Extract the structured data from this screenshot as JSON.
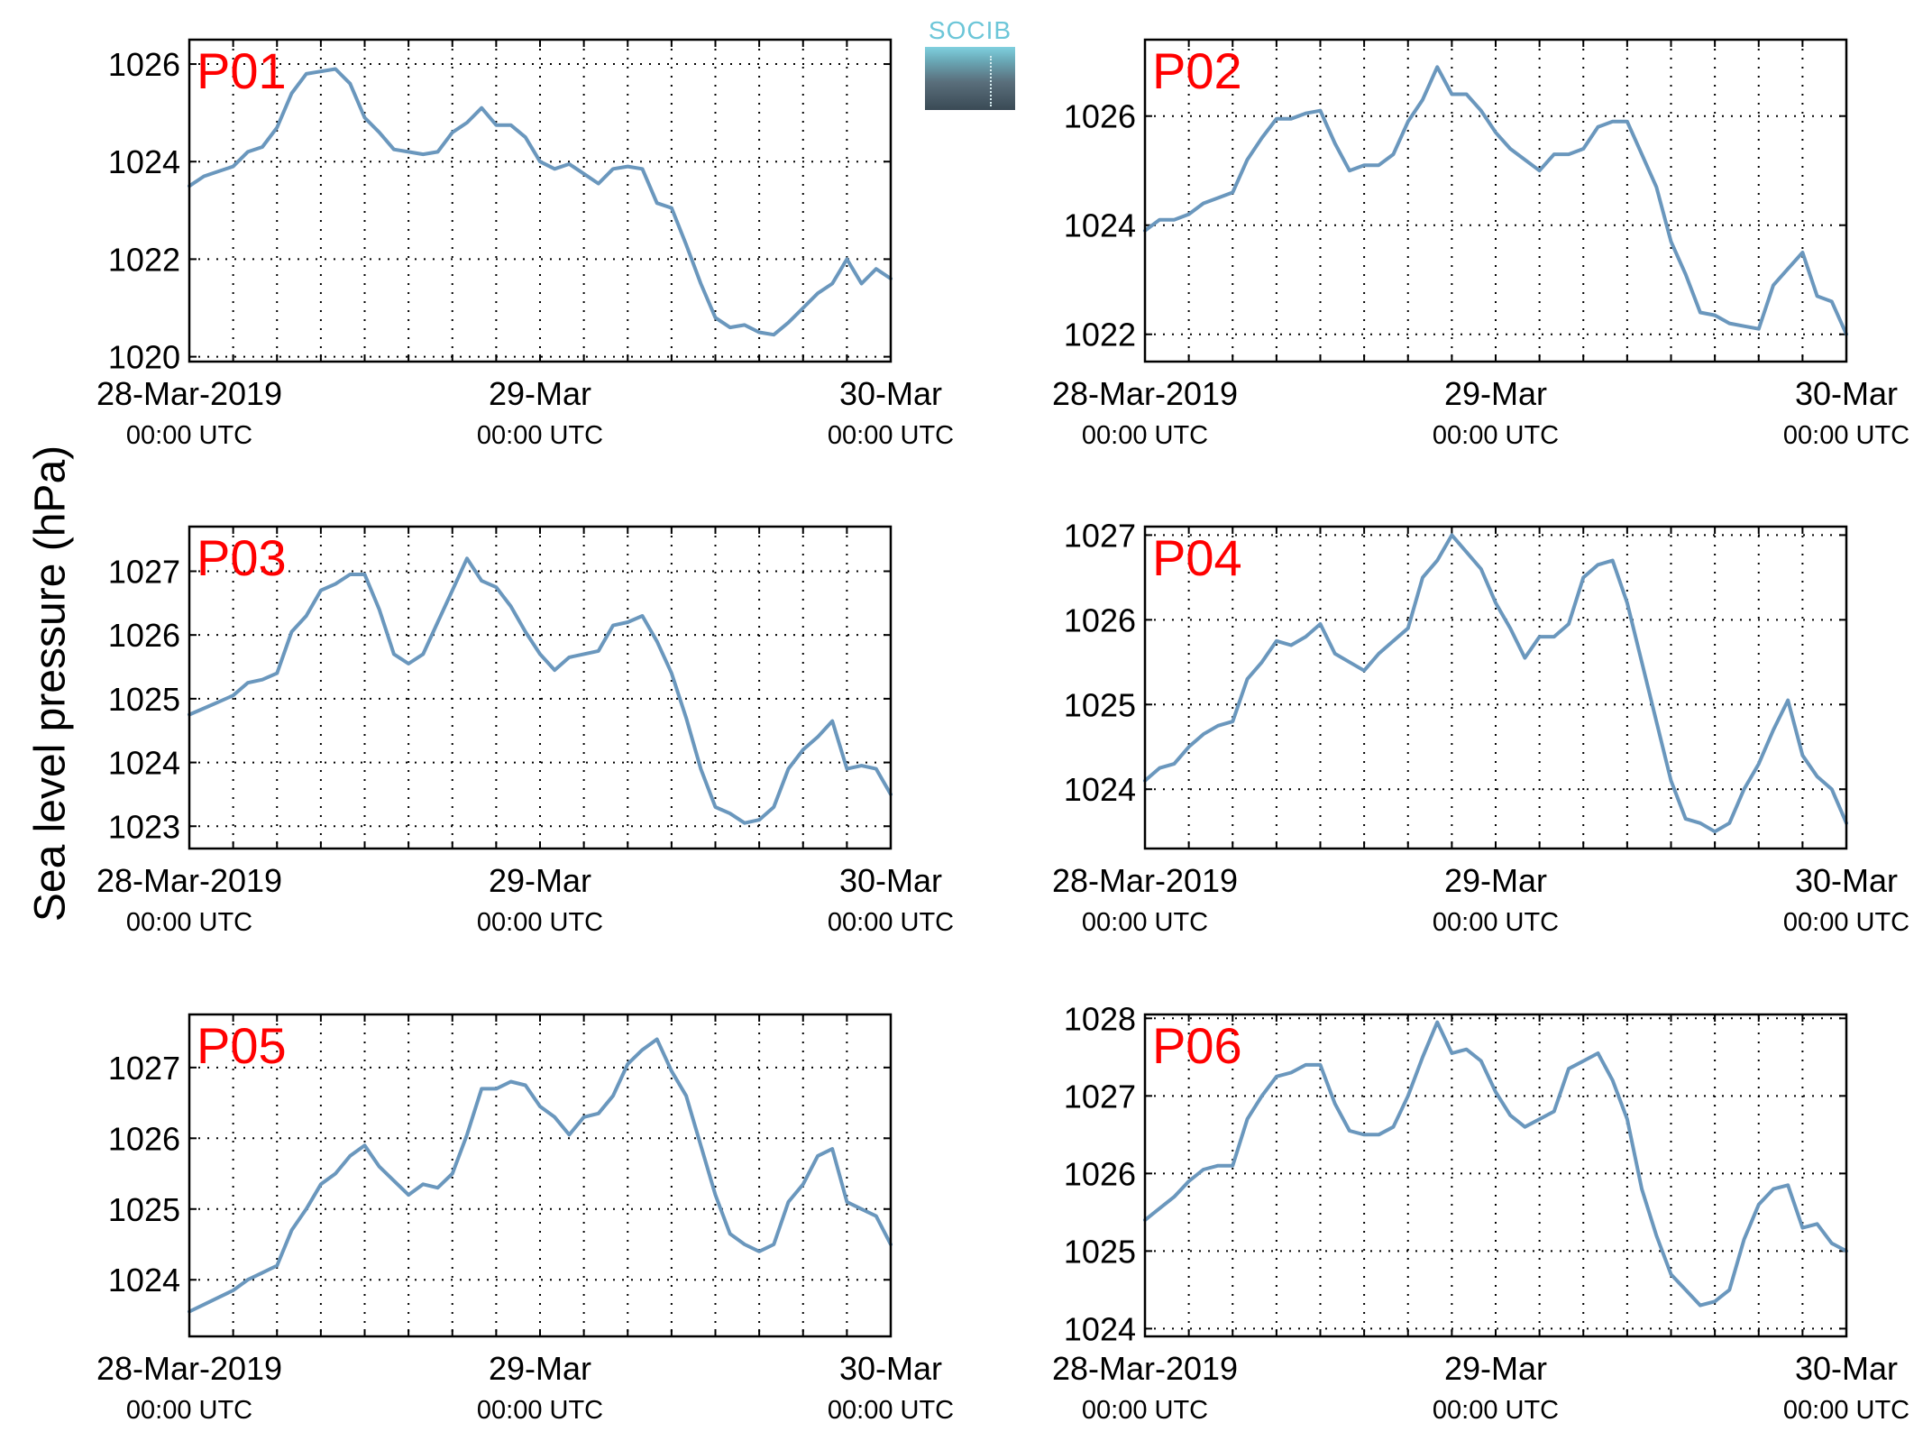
{
  "figure": {
    "ylabel": "Sea level pressure (hPa)",
    "logo_text": "SOCIB",
    "line_color": "#6a97bd",
    "panel_label_color": "#ff0000"
  },
  "chart_data": [
    {
      "type": "line",
      "title": "P01",
      "grid": true,
      "xlabel_ticks": [
        {
          "x": 0,
          "label": "28-Mar-2019",
          "sublabel": "00:00 UTC"
        },
        {
          "x": 24,
          "label": "29-Mar",
          "sublabel": "00:00 UTC"
        },
        {
          "x": 48,
          "label": "30-Mar",
          "sublabel": "00:00 UTC"
        }
      ],
      "xlim": [
        0,
        48
      ],
      "ylim": [
        1019.9,
        1026.5
      ],
      "yticks": [
        1020,
        1022,
        1024,
        1026
      ],
      "series": [
        {
          "x": [
            0,
            1,
            2,
            3,
            4,
            5,
            6,
            7,
            8,
            9,
            10,
            11,
            12,
            13,
            14,
            15,
            16,
            17,
            18,
            19,
            20,
            21,
            22,
            23,
            24,
            25,
            26,
            27,
            28,
            29,
            30,
            31,
            32,
            33,
            34,
            35,
            36,
            37,
            38,
            39,
            40,
            41,
            42,
            43,
            44,
            45,
            46,
            47,
            48
          ],
          "values": [
            1023.5,
            1023.7,
            1023.8,
            1023.9,
            1024.2,
            1024.3,
            1024.7,
            1025.4,
            1025.8,
            1025.85,
            1025.9,
            1025.6,
            1024.9,
            1024.6,
            1024.25,
            1024.2,
            1024.15,
            1024.2,
            1024.6,
            1024.8,
            1025.1,
            1024.75,
            1024.75,
            1024.5,
            1024.0,
            1023.85,
            1023.95,
            1023.75,
            1023.55,
            1023.85,
            1023.9,
            1023.85,
            1023.15,
            1023.05,
            1022.3,
            1021.5,
            1020.8,
            1020.6,
            1020.65,
            1020.5,
            1020.45,
            1020.7,
            1021.0,
            1021.3,
            1021.5,
            1022.0,
            1021.5,
            1021.8,
            1021.6
          ]
        }
      ]
    },
    {
      "type": "line",
      "title": "P02",
      "grid": true,
      "xlabel_ticks": [
        {
          "x": 0,
          "label": "28-Mar-2019",
          "sublabel": "00:00 UTC"
        },
        {
          "x": 24,
          "label": "29-Mar",
          "sublabel": "00:00 UTC"
        },
        {
          "x": 48,
          "label": "30-Mar",
          "sublabel": "00:00 UTC"
        }
      ],
      "xlim": [
        0,
        48
      ],
      "ylim": [
        1021.5,
        1027.4
      ],
      "yticks": [
        1022,
        1024,
        1026
      ],
      "series": [
        {
          "x": [
            0,
            1,
            2,
            3,
            4,
            5,
            6,
            7,
            8,
            9,
            10,
            11,
            12,
            13,
            14,
            15,
            16,
            17,
            18,
            19,
            20,
            21,
            22,
            23,
            24,
            25,
            26,
            27,
            28,
            29,
            30,
            31,
            32,
            33,
            34,
            35,
            36,
            37,
            38,
            39,
            40,
            41,
            42,
            43,
            44,
            45,
            46,
            47,
            48
          ],
          "values": [
            1023.9,
            1024.1,
            1024.1,
            1024.2,
            1024.4,
            1024.5,
            1024.6,
            1025.2,
            1025.6,
            1025.95,
            1025.95,
            1026.05,
            1026.1,
            1025.5,
            1025.0,
            1025.1,
            1025.1,
            1025.3,
            1025.9,
            1026.3,
            1026.9,
            1026.4,
            1026.4,
            1026.1,
            1025.7,
            1025.4,
            1025.2,
            1025.0,
            1025.3,
            1025.3,
            1025.4,
            1025.8,
            1025.9,
            1025.9,
            1025.3,
            1024.7,
            1023.7,
            1023.1,
            1022.4,
            1022.35,
            1022.2,
            1022.15,
            1022.1,
            1022.9,
            1023.2,
            1023.5,
            1022.7,
            1022.6,
            1022.0
          ]
        }
      ]
    },
    {
      "type": "line",
      "title": "P03",
      "grid": true,
      "xlabel_ticks": [
        {
          "x": 0,
          "label": "28-Mar-2019",
          "sublabel": "00:00 UTC"
        },
        {
          "x": 24,
          "label": "29-Mar",
          "sublabel": "00:00 UTC"
        },
        {
          "x": 48,
          "label": "30-Mar",
          "sublabel": "00:00 UTC"
        }
      ],
      "xlim": [
        0,
        48
      ],
      "ylim": [
        1022.65,
        1027.7
      ],
      "yticks": [
        1023,
        1024,
        1025,
        1026,
        1027
      ],
      "series": [
        {
          "x": [
            0,
            1,
            2,
            3,
            4,
            5,
            6,
            7,
            8,
            9,
            10,
            11,
            12,
            13,
            14,
            15,
            16,
            17,
            18,
            19,
            20,
            21,
            22,
            23,
            24,
            25,
            26,
            27,
            28,
            29,
            30,
            31,
            32,
            33,
            34,
            35,
            36,
            37,
            38,
            39,
            40,
            41,
            42,
            43,
            44,
            45,
            46,
            47,
            48
          ],
          "values": [
            1024.75,
            1024.85,
            1024.95,
            1025.05,
            1025.25,
            1025.3,
            1025.4,
            1026.05,
            1026.3,
            1026.7,
            1026.8,
            1026.95,
            1026.95,
            1026.4,
            1025.7,
            1025.55,
            1025.7,
            1026.2,
            1026.7,
            1027.2,
            1026.85,
            1026.75,
            1026.45,
            1026.05,
            1025.7,
            1025.45,
            1025.65,
            1025.7,
            1025.75,
            1026.15,
            1026.2,
            1026.3,
            1025.9,
            1025.4,
            1024.7,
            1023.9,
            1023.3,
            1023.2,
            1023.05,
            1023.1,
            1023.3,
            1023.9,
            1024.2,
            1024.4,
            1024.65,
            1023.9,
            1023.95,
            1023.9,
            1023.5
          ]
        }
      ]
    },
    {
      "type": "line",
      "title": "P04",
      "grid": true,
      "xlabel_ticks": [
        {
          "x": 0,
          "label": "28-Mar-2019",
          "sublabel": "00:00 UTC"
        },
        {
          "x": 24,
          "label": "29-Mar",
          "sublabel": "00:00 UTC"
        },
        {
          "x": 48,
          "label": "30-Mar",
          "sublabel": "00:00 UTC"
        }
      ],
      "xlim": [
        0,
        48
      ],
      "ylim": [
        1023.3,
        1027.1
      ],
      "yticks": [
        1024,
        1025,
        1026,
        1027
      ],
      "series": [
        {
          "x": [
            0,
            1,
            2,
            3,
            4,
            5,
            6,
            7,
            8,
            9,
            10,
            11,
            12,
            13,
            14,
            15,
            16,
            17,
            18,
            19,
            20,
            21,
            22,
            23,
            24,
            25,
            26,
            27,
            28,
            29,
            30,
            31,
            32,
            33,
            34,
            35,
            36,
            37,
            38,
            39,
            40,
            41,
            42,
            43,
            44,
            45,
            46,
            47,
            48
          ],
          "values": [
            1024.1,
            1024.25,
            1024.3,
            1024.5,
            1024.65,
            1024.75,
            1024.8,
            1025.3,
            1025.5,
            1025.75,
            1025.7,
            1025.8,
            1025.95,
            1025.6,
            1025.5,
            1025.4,
            1025.6,
            1025.75,
            1025.9,
            1026.5,
            1026.7,
            1027.0,
            1026.8,
            1026.6,
            1026.2,
            1025.9,
            1025.55,
            1025.8,
            1025.8,
            1025.95,
            1026.5,
            1026.65,
            1026.7,
            1026.2,
            1025.5,
            1024.8,
            1024.1,
            1023.65,
            1023.6,
            1023.5,
            1023.6,
            1024.0,
            1024.3,
            1024.7,
            1025.05,
            1024.4,
            1024.15,
            1024.0,
            1023.6
          ]
        }
      ]
    },
    {
      "type": "line",
      "title": "P05",
      "grid": true,
      "xlabel_ticks": [
        {
          "x": 0,
          "label": "28-Mar-2019",
          "sublabel": "00:00 UTC"
        },
        {
          "x": 24,
          "label": "29-Mar",
          "sublabel": "00:00 UTC"
        },
        {
          "x": 48,
          "label": "30-Mar",
          "sublabel": "00:00 UTC"
        }
      ],
      "xlim": [
        0,
        48
      ],
      "ylim": [
        1023.2,
        1027.75
      ],
      "yticks": [
        1024,
        1025,
        1026,
        1027
      ],
      "series": [
        {
          "x": [
            0,
            1,
            2,
            3,
            4,
            5,
            6,
            7,
            8,
            9,
            10,
            11,
            12,
            13,
            14,
            15,
            16,
            17,
            18,
            19,
            20,
            21,
            22,
            23,
            24,
            25,
            26,
            27,
            28,
            29,
            30,
            31,
            32,
            33,
            34,
            35,
            36,
            37,
            38,
            39,
            40,
            41,
            42,
            43,
            44,
            45,
            46,
            47,
            48
          ],
          "values": [
            1023.55,
            1023.65,
            1023.75,
            1023.85,
            1024.0,
            1024.1,
            1024.2,
            1024.7,
            1025.0,
            1025.35,
            1025.5,
            1025.75,
            1025.9,
            1025.6,
            1025.4,
            1025.2,
            1025.35,
            1025.3,
            1025.5,
            1026.05,
            1026.7,
            1026.7,
            1026.8,
            1026.75,
            1026.45,
            1026.3,
            1026.05,
            1026.3,
            1026.35,
            1026.6,
            1027.05,
            1027.25,
            1027.4,
            1026.95,
            1026.6,
            1025.9,
            1025.2,
            1024.65,
            1024.5,
            1024.4,
            1024.5,
            1025.1,
            1025.35,
            1025.75,
            1025.85,
            1025.1,
            1025.0,
            1024.9,
            1024.5
          ]
        }
      ]
    },
    {
      "type": "line",
      "title": "P06",
      "grid": true,
      "xlabel_ticks": [
        {
          "x": 0,
          "label": "28-Mar-2019",
          "sublabel": "00:00 UTC"
        },
        {
          "x": 24,
          "label": "29-Mar",
          "sublabel": "00:00 UTC"
        },
        {
          "x": 48,
          "label": "30-Mar",
          "sublabel": "00:00 UTC"
        }
      ],
      "xlim": [
        0,
        48
      ],
      "ylim": [
        1023.9,
        1028.05
      ],
      "yticks": [
        1024,
        1025,
        1026,
        1027,
        1028
      ],
      "series": [
        {
          "x": [
            0,
            1,
            2,
            3,
            4,
            5,
            6,
            7,
            8,
            9,
            10,
            11,
            12,
            13,
            14,
            15,
            16,
            17,
            18,
            19,
            20,
            21,
            22,
            23,
            24,
            25,
            26,
            27,
            28,
            29,
            30,
            31,
            32,
            33,
            34,
            35,
            36,
            37,
            38,
            39,
            40,
            41,
            42,
            43,
            44,
            45,
            46,
            47,
            48
          ],
          "values": [
            1025.4,
            1025.55,
            1025.7,
            1025.9,
            1026.05,
            1026.1,
            1026.1,
            1026.7,
            1027.0,
            1027.25,
            1027.3,
            1027.4,
            1027.4,
            1026.9,
            1026.55,
            1026.5,
            1026.5,
            1026.6,
            1027.0,
            1027.5,
            1027.95,
            1027.55,
            1027.6,
            1027.45,
            1027.05,
            1026.75,
            1026.6,
            1026.7,
            1026.8,
            1027.35,
            1027.45,
            1027.55,
            1027.2,
            1026.7,
            1025.8,
            1025.2,
            1024.7,
            1024.5,
            1024.3,
            1024.35,
            1024.5,
            1025.15,
            1025.6,
            1025.8,
            1025.85,
            1025.3,
            1025.35,
            1025.1,
            1025.0
          ]
        }
      ]
    }
  ]
}
